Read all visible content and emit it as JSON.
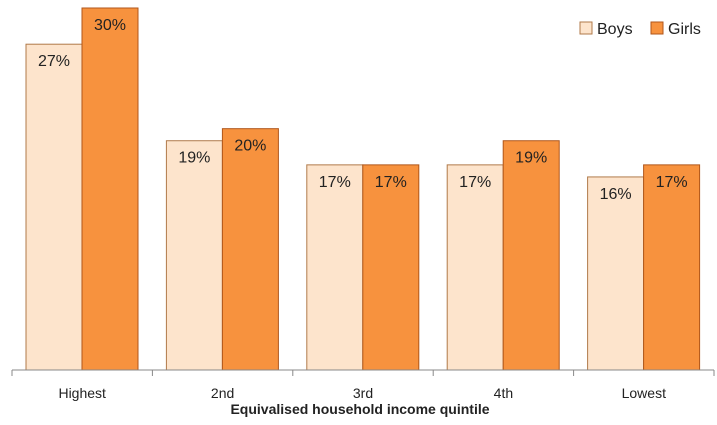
{
  "chart_data": {
    "type": "bar",
    "title": "",
    "xlabel": "Equivalised household income quintile",
    "ylabel": "",
    "categories": [
      "Highest",
      "2nd",
      "3rd",
      "4th",
      "Lowest"
    ],
    "series": [
      {
        "name": "Boys",
        "values": [
          27,
          19,
          17,
          17,
          16
        ],
        "labels": [
          "27%",
          "19%",
          "17%",
          "17%",
          "16%"
        ],
        "color": "#FDE4CC",
        "stroke": "#B07A4A"
      },
      {
        "name": "Girls",
        "values": [
          30,
          20,
          17,
          19,
          17
        ],
        "labels": [
          "30%",
          "20%",
          "17%",
          "19%",
          "17%"
        ],
        "color": "#F7923E",
        "stroke": "#B0561A"
      }
    ],
    "ylim": [
      0,
      30
    ],
    "grid": false,
    "legend_position": "top-right"
  }
}
